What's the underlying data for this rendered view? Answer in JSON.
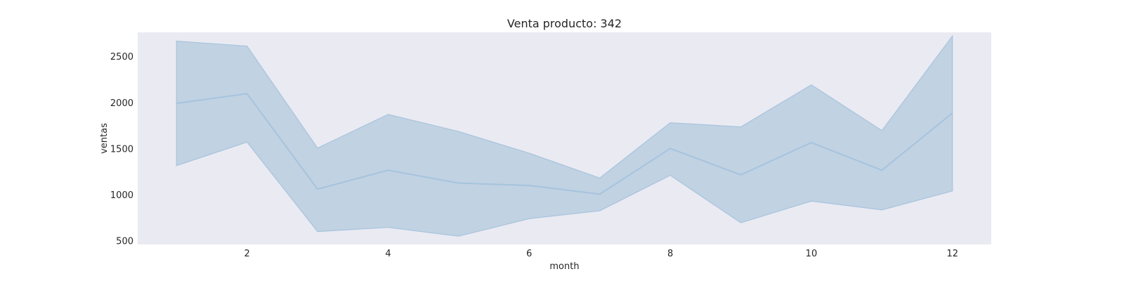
{
  "chart_data": {
    "type": "area",
    "title": "Venta producto: 342",
    "xlabel": "month",
    "ylabel": "ventas",
    "xlim": [
      0.45,
      12.55
    ],
    "ylim": [
      460,
      2760
    ],
    "x_ticks": [
      2,
      4,
      6,
      8,
      10,
      12
    ],
    "y_ticks": [
      500,
      1000,
      1500,
      2000,
      2500
    ],
    "grid": false,
    "series": [
      {
        "x": [
          1,
          2,
          3,
          4,
          5,
          6,
          7,
          8,
          9,
          10,
          11,
          12
        ],
        "mean": [
          1990,
          2095,
          1060,
          1265,
          1125,
          1100,
          1005,
          1500,
          1215,
          1565,
          1265,
          1885
        ],
        "upper": [
          2665,
          2610,
          1505,
          1870,
          1685,
          1450,
          1180,
          1780,
          1735,
          2190,
          1695,
          2720
        ],
        "lower": [
          1315,
          1570,
          600,
          645,
          550,
          740,
          825,
          1210,
          695,
          930,
          835,
          1040
        ]
      }
    ],
    "colors": {
      "plot_background": "#eaeaf2",
      "line": "#a6c4dd",
      "band": "#c1d2e3"
    }
  }
}
